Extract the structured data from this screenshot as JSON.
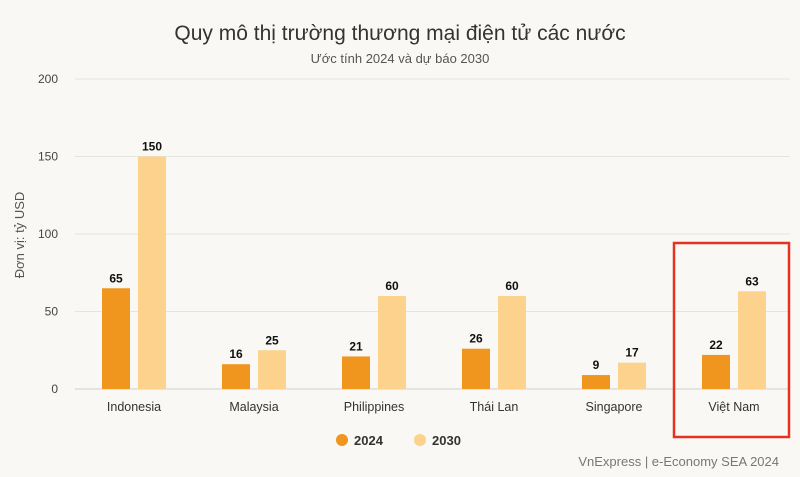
{
  "chart_data": {
    "type": "bar",
    "title": "Quy mô thị trường thương mại điện tử các nước",
    "subtitle": "Ước tính 2024 và dự báo 2030",
    "ylabel": "Đơn vị: tỷ USD",
    "xlabel": "",
    "ylim": [
      0,
      200
    ],
    "yticks": [
      0,
      50,
      100,
      150,
      200
    ],
    "categories": [
      "Indonesia",
      "Malaysia",
      "Philippines",
      "Thái Lan",
      "Singapore",
      "Việt Nam"
    ],
    "series": [
      {
        "name": "2024",
        "color": "#f0961e",
        "values": [
          65,
          16,
          21,
          26,
          9,
          22
        ]
      },
      {
        "name": "2030",
        "color": "#fcd28c",
        "values": [
          150,
          25,
          60,
          60,
          17,
          63
        ]
      }
    ],
    "grid": true,
    "legend_position": "bottom-center",
    "highlight": {
      "category": "Việt Nam",
      "color": "#e53222"
    },
    "source": "VnExpress | e-Economy SEA 2024"
  }
}
